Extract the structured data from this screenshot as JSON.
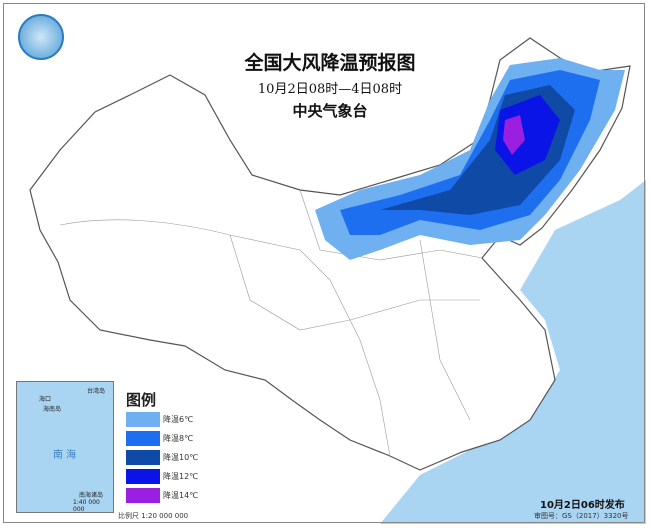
{
  "title": "全国大风降温预报图",
  "period": "10月2日08时—4日08时",
  "issuer": "中央气象台",
  "legend": {
    "title": "图例",
    "items": [
      {
        "label": "降温6℃",
        "color": "#6eb0f0"
      },
      {
        "label": "降温8℃",
        "color": "#1e6ff0"
      },
      {
        "label": "降温10℃",
        "color": "#0f4aa6"
      },
      {
        "label": "降温12℃",
        "color": "#0a14e6"
      },
      {
        "label": "降温14℃",
        "color": "#9a1fe0"
      }
    ]
  },
  "inset": {
    "title": "南海诸岛",
    "scale": "1:40 000 000",
    "sea": "南 海",
    "labels": [
      "海口",
      "海南岛",
      "台湾岛"
    ]
  },
  "scale": "比例尺  1:20 000 000",
  "issued": "10月2日06时发布",
  "approval": "审图号：GS（2017）3320号",
  "colors": {
    "land": "#ffffff",
    "sea": "#a9d4f2",
    "border": "#555555"
  }
}
